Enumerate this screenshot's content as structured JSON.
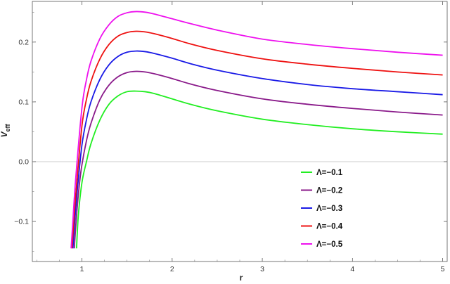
{
  "chart_data": {
    "type": "line",
    "title": "",
    "xlabel": "r",
    "ylabel": "V_eff",
    "xlim": [
      0.45,
      5.05
    ],
    "ylim": [
      -0.167,
      0.268
    ],
    "x_ticks": [
      1,
      2,
      3,
      4,
      5
    ],
    "x_tick_labels": [
      "1",
      "2",
      "3",
      "4",
      "5"
    ],
    "y_ticks": [
      -0.1,
      0,
      0.1,
      0.2
    ],
    "y_tick_labels": [
      "-0.1",
      "0.0",
      "0.1",
      "0.2"
    ],
    "zero_line": true,
    "grid": false,
    "legend_position": "bottom-right",
    "series": [
      {
        "name": "Λ=−0.1",
        "color": "#22ee22",
        "x": [
          0.94,
          0.96,
          1.0,
          1.05,
          1.1,
          1.2,
          1.3,
          1.4,
          1.5,
          1.6,
          1.7,
          1.8,
          2.0,
          2.2,
          2.5,
          3.0,
          3.5,
          4.0,
          4.5,
          5.0
        ],
        "y": [
          -0.145,
          -0.09,
          -0.035,
          0.0,
          0.03,
          0.07,
          0.096,
          0.11,
          0.117,
          0.118,
          0.117,
          0.114,
          0.105,
          0.096,
          0.085,
          0.071,
          0.062,
          0.055,
          0.05,
          0.046
        ]
      },
      {
        "name": "Λ=−0.2",
        "color": "#8a1a8a",
        "x": [
          0.915,
          0.94,
          0.97,
          1.0,
          1.05,
          1.1,
          1.2,
          1.3,
          1.4,
          1.5,
          1.6,
          1.7,
          1.8,
          2.0,
          2.2,
          2.5,
          3.0,
          3.5,
          4.0,
          4.5,
          5.0
        ],
        "y": [
          -0.145,
          -0.09,
          -0.04,
          -0.005,
          0.035,
          0.064,
          0.104,
          0.128,
          0.142,
          0.149,
          0.151,
          0.15,
          0.147,
          0.139,
          0.13,
          0.119,
          0.105,
          0.096,
          0.089,
          0.083,
          0.078
        ]
      },
      {
        "name": "Λ=−0.3",
        "color": "#1a1ae6",
        "x": [
          0.9,
          0.92,
          0.95,
          1.0,
          1.05,
          1.1,
          1.2,
          1.3,
          1.4,
          1.5,
          1.6,
          1.7,
          1.8,
          2.0,
          2.2,
          2.5,
          3.0,
          3.5,
          4.0,
          4.5,
          5.0
        ],
        "y": [
          -0.145,
          -0.1,
          -0.045,
          0.028,
          0.07,
          0.1,
          0.138,
          0.162,
          0.176,
          0.183,
          0.185,
          0.184,
          0.181,
          0.173,
          0.164,
          0.153,
          0.139,
          0.129,
          0.122,
          0.117,
          0.112
        ]
      },
      {
        "name": "Λ=−0.4",
        "color": "#ee1111",
        "x": [
          0.89,
          0.91,
          0.94,
          1.0,
          1.05,
          1.1,
          1.2,
          1.3,
          1.4,
          1.5,
          1.6,
          1.7,
          1.8,
          2.0,
          2.2,
          2.5,
          3.0,
          3.5,
          4.0,
          4.5,
          5.0
        ],
        "y": [
          -0.145,
          -0.1,
          -0.04,
          0.06,
          0.104,
          0.134,
          0.172,
          0.196,
          0.21,
          0.216,
          0.218,
          0.217,
          0.214,
          0.206,
          0.197,
          0.186,
          0.172,
          0.163,
          0.156,
          0.15,
          0.145
        ]
      },
      {
        "name": "Λ=−0.5",
        "color": "#ee11ee",
        "x": [
          0.88,
          0.9,
          0.93,
          1.0,
          1.05,
          1.1,
          1.2,
          1.3,
          1.4,
          1.5,
          1.6,
          1.7,
          1.8,
          2.0,
          2.2,
          2.5,
          3.0,
          3.5,
          4.0,
          4.5,
          5.0
        ],
        "y": [
          -0.145,
          -0.098,
          -0.03,
          0.09,
          0.137,
          0.168,
          0.206,
          0.229,
          0.243,
          0.249,
          0.251,
          0.25,
          0.247,
          0.239,
          0.231,
          0.22,
          0.205,
          0.196,
          0.189,
          0.183,
          0.178
        ]
      }
    ]
  }
}
